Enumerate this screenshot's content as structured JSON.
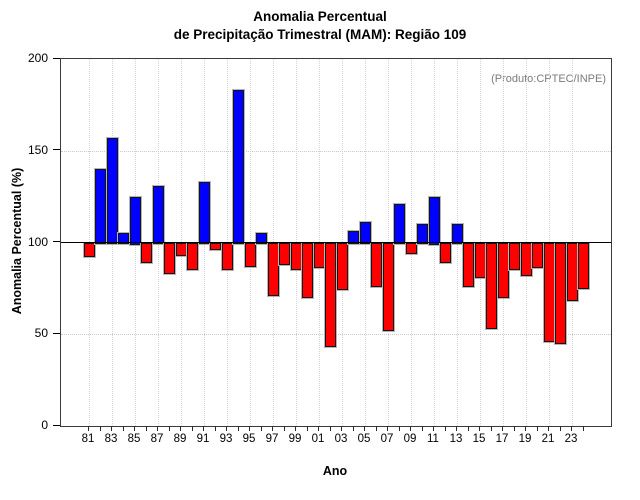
{
  "title": {
    "line1": "Anomalia Percentual",
    "line2": "de Precipitação Trimestral (MAM): Região 109"
  },
  "annotation": "(Produto:CPTEC/INPE)",
  "axes": {
    "y_label": "Anomalia Percentual (%)",
    "x_label": "Ano",
    "y_ticks": [
      0,
      50,
      100,
      150,
      200
    ],
    "x_tick_labels": [
      "81",
      "83",
      "85",
      "87",
      "89",
      "91",
      "93",
      "95",
      "97",
      "99",
      "01",
      "03",
      "05",
      "07",
      "09",
      "11",
      "13",
      "15",
      "17",
      "19",
      "21",
      "23"
    ]
  },
  "colors": {
    "above_baseline": "#0000ff",
    "below_baseline": "#ff0000",
    "annotation_gray": "#7b7b7b"
  },
  "chart_data": {
    "type": "bar",
    "title": "Anomalia Percentual de Precipitação Trimestral (MAM): Região 109",
    "xlabel": "Ano",
    "ylabel": "Anomalia Percentual (%)",
    "ylim": [
      0,
      200
    ],
    "baseline": 100,
    "grid": "dotted, horizontal at 50/150, vertical at labeled years",
    "legend": "none; bars >=100 blue, <100 red",
    "x": [
      1981,
      1982,
      1983,
      1984,
      1985,
      1986,
      1987,
      1988,
      1989,
      1990,
      1991,
      1992,
      1993,
      1994,
      1995,
      1996,
      1997,
      1998,
      1999,
      2000,
      2001,
      2002,
      2003,
      2004,
      2005,
      2006,
      2007,
      2008,
      2009,
      2010,
      2011,
      2012,
      2013,
      2014,
      2015,
      2016,
      2017,
      2018,
      2019,
      2020,
      2021,
      2022,
      2023,
      2024
    ],
    "values": [
      93,
      140,
      157,
      105,
      125,
      90,
      131,
      84,
      94,
      86,
      133,
      97,
      86,
      183,
      88,
      105,
      72,
      89,
      86,
      71,
      87,
      44,
      75,
      106,
      111,
      77,
      53,
      121,
      95,
      110,
      125,
      90,
      110,
      77,
      82,
      54,
      71,
      86,
      83,
      87,
      47,
      46,
      69,
      76
    ]
  }
}
